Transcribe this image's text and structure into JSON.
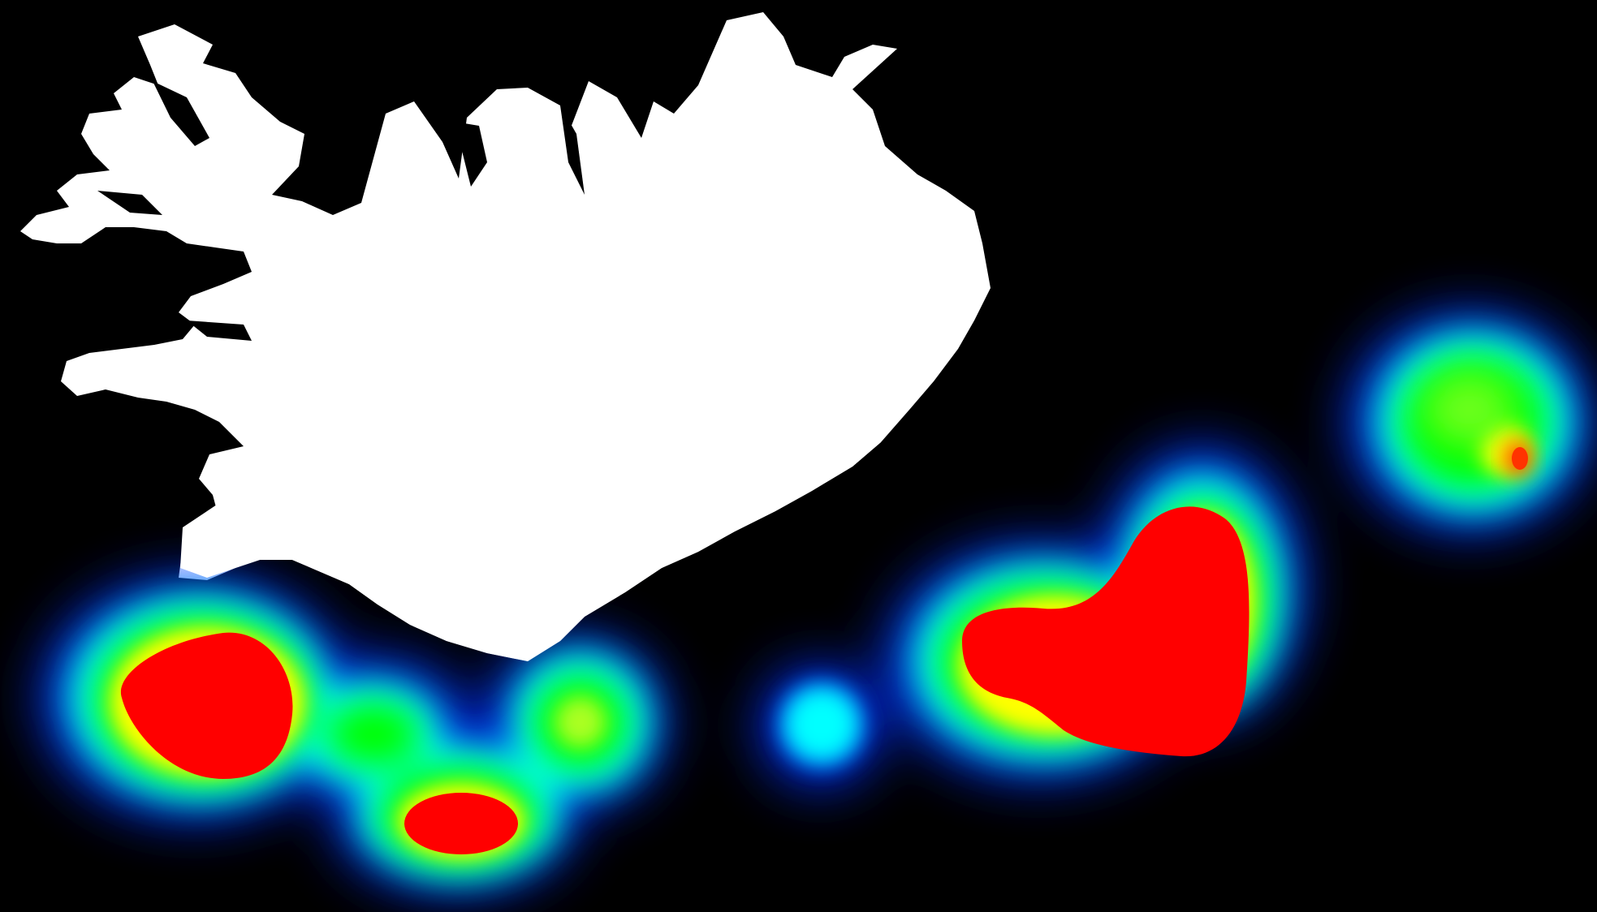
{
  "map": {
    "background_color": "#000000",
    "landmass": {
      "name": "Iceland",
      "fill": "#ffffff"
    },
    "heatmap": {
      "color_ramp": [
        "#0000ff",
        "#00ffff",
        "#00ff00",
        "#ffff00",
        "#ff0000"
      ],
      "hotspots": [
        {
          "id": "southwest",
          "intensity": 1.0
        },
        {
          "id": "south-central",
          "intensity": 1.0
        },
        {
          "id": "south-coast",
          "intensity": 0.55
        },
        {
          "id": "offshore-south",
          "intensity": 0.3
        },
        {
          "id": "southeast",
          "intensity": 1.0
        },
        {
          "id": "east-offshore",
          "intensity": 0.6
        },
        {
          "id": "east-offshore-core",
          "intensity": 0.85
        }
      ]
    }
  }
}
